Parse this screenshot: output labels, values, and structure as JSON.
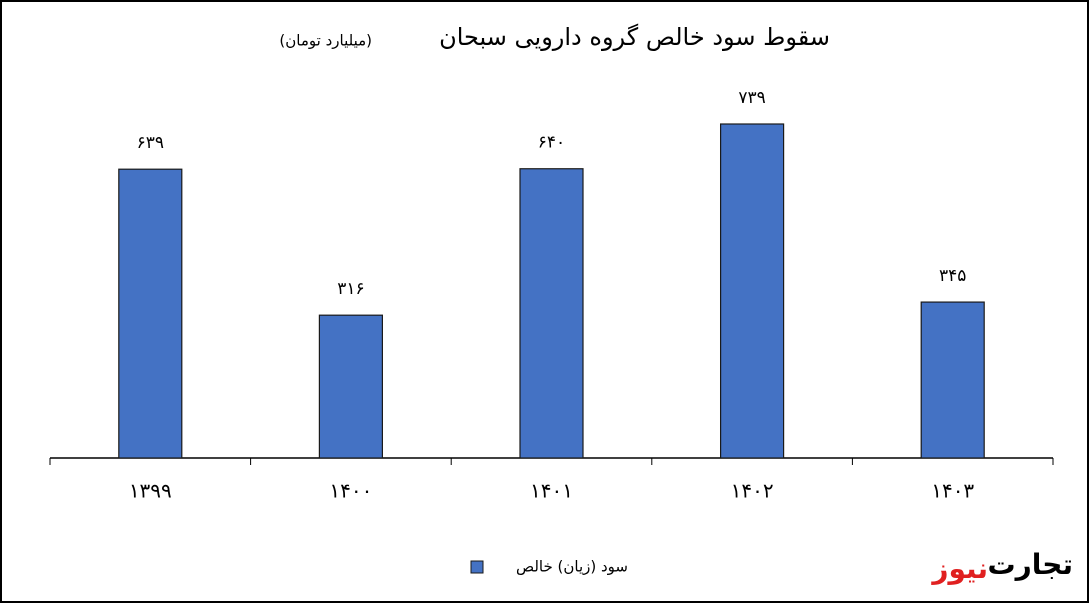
{
  "chart_data": {
    "type": "bar",
    "title": "سقوط سود خالص گروه دارویی سبحان",
    "subtitle": "(میلیارد تومان)",
    "categories": [
      "۱۳۹۹",
      "۱۴۰۰",
      "۱۴۰۱",
      "۱۴۰۲",
      "۱۴۰۳"
    ],
    "series": [
      {
        "name": "سود (زیان) خالص",
        "color": "#4472c4",
        "values": [
          639,
          316,
          640,
          739,
          345
        ],
        "value_labels": [
          "۶۳۹",
          "۳۱۶",
          "۶۴۰",
          "۷۳۹",
          "۳۴۵"
        ]
      }
    ],
    "legend": "bottom"
  },
  "logo": {
    "part1": "تجارت",
    "part2": "نیوز"
  }
}
